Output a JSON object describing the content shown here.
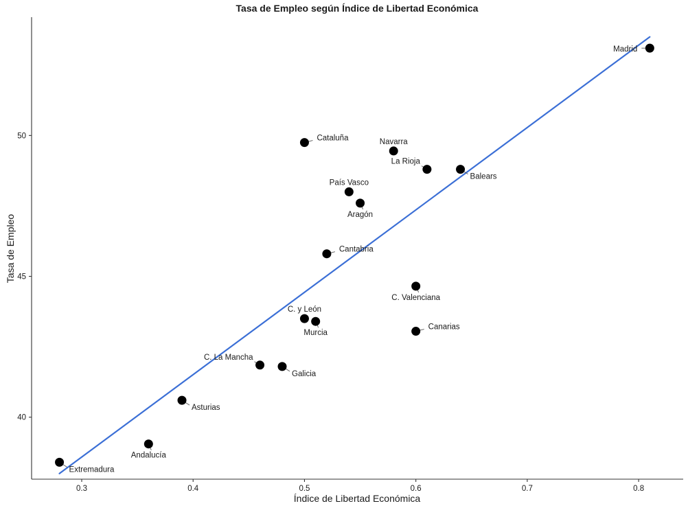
{
  "chart_data": {
    "type": "scatter",
    "title": "Tasa de Empleo según Índice de Libertad Económica",
    "xlabel": "Índice de Libertad Económica",
    "ylabel": "Tasa de Empleo",
    "xlim": [
      0.255,
      0.84
    ],
    "ylim": [
      37.8,
      54.2
    ],
    "xticks": [
      0.3,
      0.4,
      0.5,
      0.6,
      0.7,
      0.8
    ],
    "xtick_labels": [
      "0.3",
      "0.4",
      "0.5",
      "0.6",
      "0.7",
      "0.8"
    ],
    "yticks": [
      40,
      45,
      50
    ],
    "ytick_labels": [
      "40",
      "45",
      "50"
    ],
    "grid": false,
    "legend": "none",
    "point_color": "#000000",
    "line_color": "#3b6fd6",
    "points": [
      {
        "label": "Madrid",
        "x": 0.81,
        "y": 53.1,
        "label_pos": "left"
      },
      {
        "label": "Cataluña",
        "x": 0.5,
        "y": 49.75,
        "label_pos": "right"
      },
      {
        "label": "Navarra",
        "x": 0.58,
        "y": 49.45,
        "label_pos": "above"
      },
      {
        "label": "La Rioja",
        "x": 0.61,
        "y": 48.8,
        "label_pos": "upper-left"
      },
      {
        "label": "Balears",
        "x": 0.64,
        "y": 48.8,
        "label_pos": "lower-right"
      },
      {
        "label": "País Vasco",
        "x": 0.54,
        "y": 48.0,
        "label_pos": "above"
      },
      {
        "label": "Aragón",
        "x": 0.55,
        "y": 47.6,
        "label_pos": "below"
      },
      {
        "label": "Cantabria",
        "x": 0.52,
        "y": 45.8,
        "label_pos": "right"
      },
      {
        "label": "C. Valenciana",
        "x": 0.6,
        "y": 44.65,
        "label_pos": "below"
      },
      {
        "label": "C. y León",
        "x": 0.5,
        "y": 43.5,
        "label_pos": "above"
      },
      {
        "label": "Murcia",
        "x": 0.51,
        "y": 43.4,
        "label_pos": "below"
      },
      {
        "label": "Canarias",
        "x": 0.6,
        "y": 43.05,
        "label_pos": "right"
      },
      {
        "label": "C. La Mancha",
        "x": 0.46,
        "y": 41.85,
        "label_pos": "upper-left"
      },
      {
        "label": "Galicia",
        "x": 0.48,
        "y": 41.8,
        "label_pos": "lower-right"
      },
      {
        "label": "Asturias",
        "x": 0.39,
        "y": 40.6,
        "label_pos": "lower-right"
      },
      {
        "label": "Andalucía",
        "x": 0.36,
        "y": 39.05,
        "label_pos": "below"
      },
      {
        "label": "Extremadura",
        "x": 0.28,
        "y": 38.4,
        "label_pos": "lower-right"
      }
    ],
    "trend_line": {
      "x": [
        0.28,
        0.81
      ],
      "y": [
        38.0,
        53.5
      ]
    }
  }
}
